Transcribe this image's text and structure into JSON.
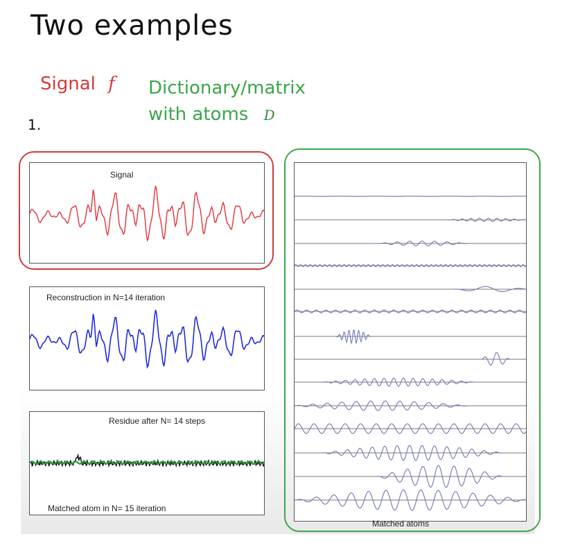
{
  "heading": "Two examples",
  "signal_label": "Signal",
  "signal_symbol": "f",
  "dictionary_label_line1": "Dictionary/matrix",
  "dictionary_label_line2": "with atoms",
  "dictionary_symbol": "D",
  "item_number": "1.",
  "panels": {
    "signal_title": "Signal",
    "reconstruction_title": "Reconstruction in N=14 iteration",
    "residue_title": "Residue after N= 14 steps",
    "matched_atom_caption": "Matched atom in N= 15 iteration",
    "atoms_caption": "Matched atoms"
  },
  "colors": {
    "signal": "#e0333a",
    "reconstruction": "#1f2bd6",
    "residue": "#111111",
    "matched_atom": "#2a9a3a",
    "atoms": "#7b7fb8",
    "red_outline": "#cf3b3b",
    "green_outline": "#3aa64a"
  }
}
